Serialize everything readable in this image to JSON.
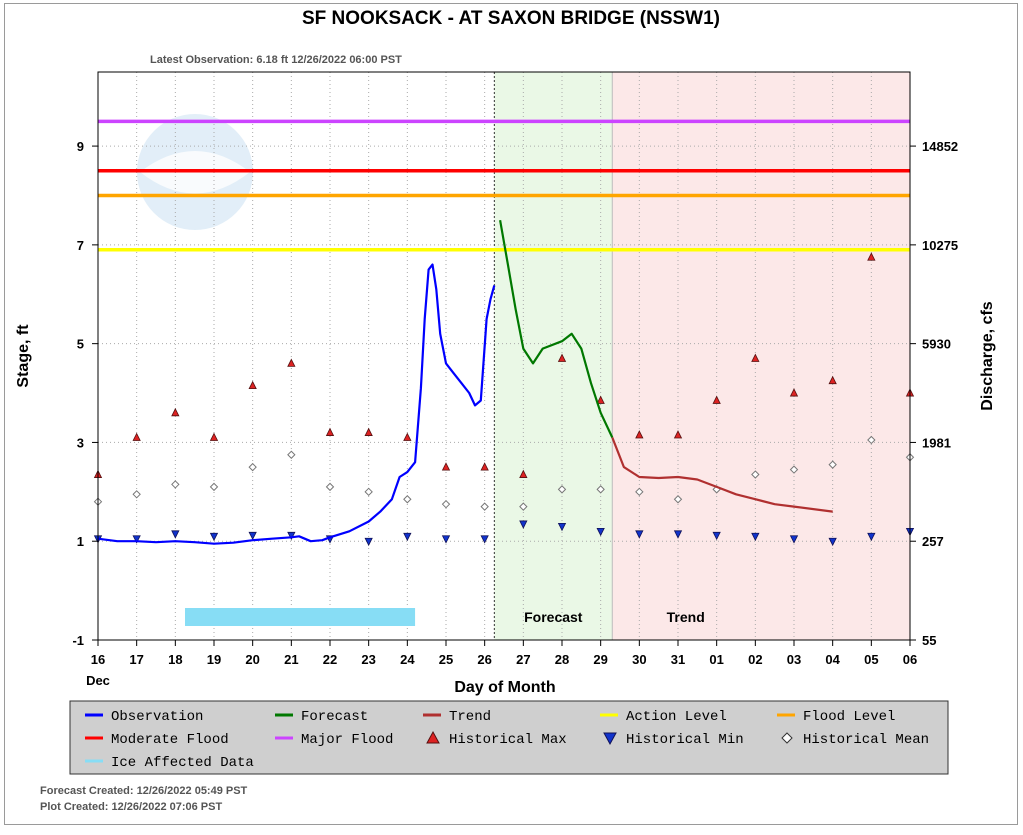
{
  "title": "SF NOOKSACK - AT SAXON BRIDGE  (NSSW1)",
  "latest_observation": "Latest Observation: 6.18 ft 12/26/2022 06:00 PST",
  "forecast_created": "Forecast Created: 12/26/2022 05:49 PST",
  "plot_created": "Plot Created: 12/26/2022 07:06 PST",
  "colors": {
    "observation": "#0000ff",
    "forecast": "#007800",
    "trend": "#b03030",
    "action_level": "#ffff00",
    "flood_level": "#ffa500",
    "moderate_flood": "#ff0000",
    "major_flood": "#cc44ff",
    "ice": "#87ddf5",
    "forecast_bg": "#eaf8e6",
    "trend_bg": "#fce8e8"
  },
  "chart_data": {
    "type": "line",
    "title": "SF NOOKSACK - AT SAXON BRIDGE  (NSSW1)",
    "xlabel": "Day of Month",
    "ylabel": "Stage, ft",
    "y2label": "Discharge, cfs",
    "xlim": [
      16,
      37
    ],
    "ylim": [
      -1,
      10.5
    ],
    "x_ticks": [
      "16",
      "17",
      "18",
      "19",
      "20",
      "21",
      "22",
      "23",
      "24",
      "25",
      "26",
      "27",
      "28",
      "29",
      "30",
      "31",
      "01",
      "02",
      "03",
      "04",
      "05",
      "06"
    ],
    "x_sublabel": "Dec",
    "y_ticks": [
      -1,
      1,
      3,
      5,
      7,
      9
    ],
    "y2_ticks": [
      {
        "stage": -1,
        "label": "55"
      },
      {
        "stage": 1,
        "label": "257"
      },
      {
        "stage": 3,
        "label": "1981"
      },
      {
        "stage": 5,
        "label": "5930"
      },
      {
        "stage": 7,
        "label": "10275"
      },
      {
        "stage": 9,
        "label": "14852"
      }
    ],
    "region_labels": {
      "forecast": "Forecast",
      "trend": "Trend"
    },
    "forecast_region": [
      26.25,
      29.3
    ],
    "trend_region": [
      29.3,
      37
    ],
    "now_line": 26.25,
    "levels": [
      {
        "name": "Major Flood",
        "stage": 9.5
      },
      {
        "name": "Moderate Flood",
        "stage": 8.5
      },
      {
        "name": "Flood Level",
        "stage": 8.0
      },
      {
        "name": "Action Level",
        "stage": 6.9
      }
    ],
    "ice_affected": [
      18.25,
      24.2
    ],
    "series": [
      {
        "name": "Observation",
        "x": [
          16,
          16.5,
          17,
          17.5,
          18,
          18.5,
          19,
          19.5,
          20,
          20.5,
          21,
          21.2,
          21.5,
          21.8,
          22,
          22.5,
          23,
          23.3,
          23.6,
          23.8,
          24,
          24.2,
          24.35,
          24.45,
          24.55,
          24.65,
          24.75,
          24.85,
          25,
          25.2,
          25.4,
          25.6,
          25.75,
          25.9,
          26.05,
          26.15,
          26.25
        ],
        "y": [
          1.05,
          1.0,
          1.0,
          0.98,
          1.0,
          0.98,
          0.95,
          0.97,
          1.02,
          1.05,
          1.08,
          1.1,
          1.0,
          1.02,
          1.08,
          1.2,
          1.4,
          1.6,
          1.85,
          2.3,
          2.4,
          2.6,
          4.1,
          5.5,
          6.5,
          6.6,
          6.1,
          5.2,
          4.6,
          4.4,
          4.2,
          4.0,
          3.75,
          3.85,
          5.5,
          5.9,
          6.18
        ]
      },
      {
        "name": "Forecast",
        "x": [
          26.4,
          26.6,
          26.8,
          27.0,
          27.25,
          27.5,
          28.0,
          28.25,
          28.5,
          28.75,
          29.0,
          29.3
        ],
        "y": [
          7.5,
          6.6,
          5.7,
          4.9,
          4.6,
          4.9,
          5.05,
          5.2,
          4.9,
          4.2,
          3.6,
          3.1
        ]
      },
      {
        "name": "Trend",
        "x": [
          29.3,
          29.6,
          30.0,
          30.5,
          31.0,
          31.5,
          32.0,
          32.5,
          33.0,
          33.5,
          34.0,
          35.0
        ],
        "y": [
          3.1,
          2.5,
          2.3,
          2.28,
          2.3,
          2.25,
          2.1,
          1.95,
          1.85,
          1.75,
          1.7,
          1.6
        ]
      }
    ],
    "historical_max": {
      "name": "Historical Max",
      "x": [
        16,
        17,
        18,
        19,
        20,
        21,
        22,
        23,
        24,
        25,
        26,
        27,
        28,
        29,
        30,
        31,
        32,
        33,
        34,
        35,
        36,
        37
      ],
      "y": [
        2.35,
        3.1,
        3.6,
        3.1,
        4.15,
        4.6,
        3.2,
        3.2,
        3.1,
        2.5,
        2.5,
        2.35,
        4.7,
        3.85,
        3.15,
        3.15,
        3.85,
        4.7,
        4.0,
        4.25,
        6.75,
        4.0
      ]
    },
    "historical_min": {
      "name": "Historical Min",
      "x": [
        16,
        17,
        18,
        19,
        20,
        21,
        22,
        23,
        24,
        25,
        26,
        27,
        28,
        29,
        30,
        31,
        32,
        33,
        34,
        35,
        36,
        37
      ],
      "y": [
        1.05,
        1.05,
        1.15,
        1.1,
        1.12,
        1.12,
        1.05,
        1.0,
        1.1,
        1.05,
        1.05,
        1.35,
        1.3,
        1.2,
        1.15,
        1.15,
        1.12,
        1.1,
        1.05,
        1.0,
        1.1,
        1.2
      ]
    },
    "historical_mean": {
      "name": "Historical Mean",
      "x": [
        16,
        17,
        18,
        19,
        20,
        21,
        22,
        23,
        24,
        25,
        26,
        27,
        28,
        29,
        30,
        31,
        32,
        33,
        34,
        35,
        36,
        37
      ],
      "y": [
        1.8,
        1.95,
        2.15,
        2.1,
        2.5,
        2.75,
        2.1,
        2.0,
        1.85,
        1.75,
        1.7,
        1.7,
        2.05,
        2.05,
        2.0,
        1.85,
        2.05,
        2.35,
        2.45,
        2.55,
        3.05,
        2.7
      ]
    },
    "legend_position": "bottom",
    "legend": [
      "Observation",
      "Forecast",
      "Trend",
      "Action Level",
      "Flood Level",
      "Moderate Flood",
      "Major Flood",
      "Historical Max",
      "Historical Min",
      "Historical Mean",
      "Ice Affected Data"
    ]
  }
}
